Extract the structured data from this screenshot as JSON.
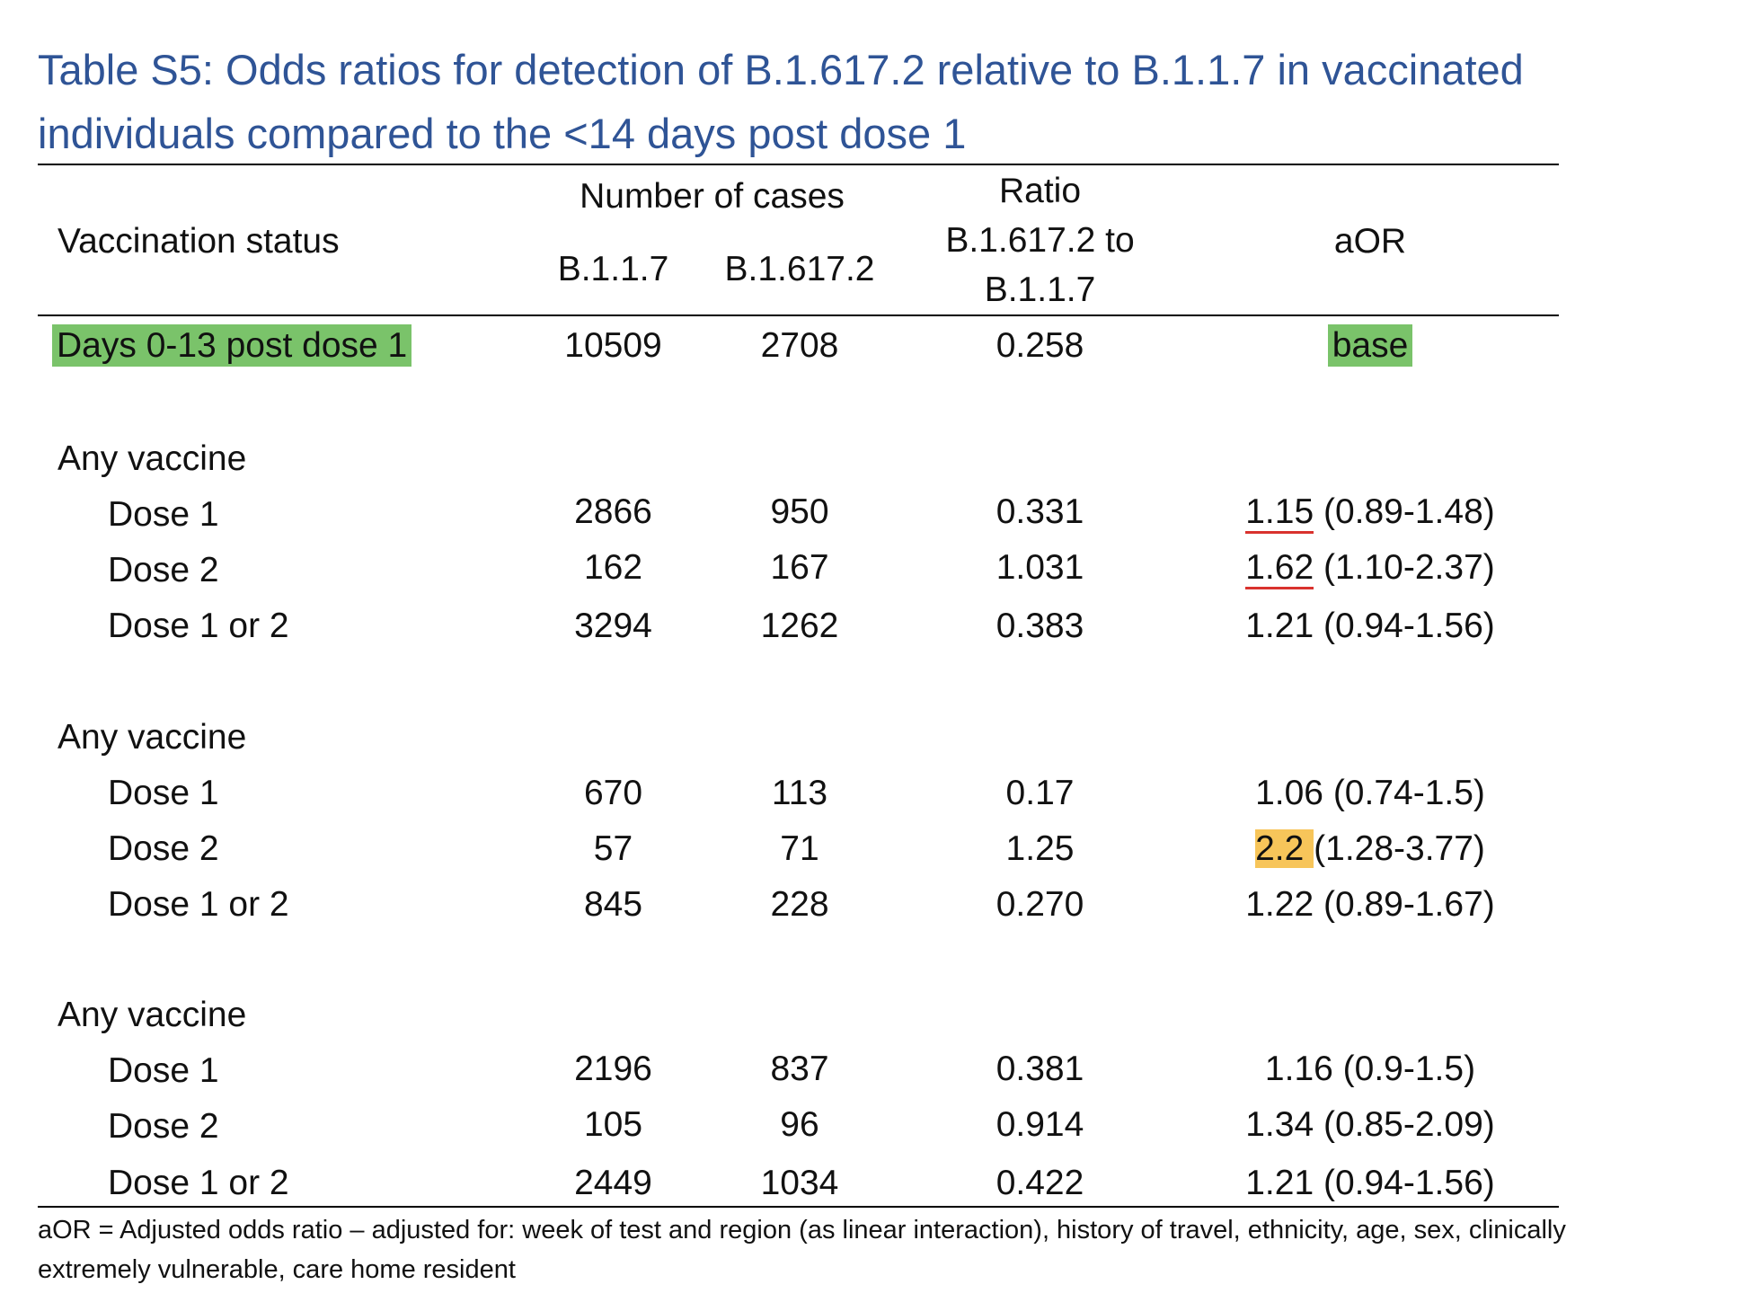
{
  "title": "Table S5: Odds ratios for detection of B.1.617.2 relative to B.1.1.7 in vaccinated individuals compared to the <14 days post dose 1",
  "header": {
    "col_status": "Vaccination status",
    "col_cases_group": "Number of cases",
    "col_b117": "B.1.1.7",
    "col_b16172": "B.1.617.2",
    "col_ratio_line1": "Ratio",
    "col_ratio_line2": "B.1.617.2 to",
    "col_ratio_line3": "B.1.1.7",
    "col_aor": "aOR"
  },
  "baseline": {
    "label": "Days 0-13 post dose 1",
    "b117": "10509",
    "b16172": "2708",
    "ratio": "0.258",
    "aor": "base"
  },
  "groups": [
    {
      "label": "Any vaccine",
      "rows": [
        {
          "label": "Dose 1",
          "b117": "2866",
          "b16172": "950",
          "ratio": "0.331",
          "aor_est": "1.15",
          "aor_ci": " (0.89-1.48)"
        },
        {
          "label": "Dose 2",
          "b117": "162",
          "b16172": "167",
          "ratio": "1.031",
          "aor_est": "1.62",
          "aor_ci": " (1.10-2.37)"
        },
        {
          "label": "Dose 1 or 2",
          "b117": "3294",
          "b16172": "1262",
          "ratio": "0.383",
          "aor_est": "1.21",
          "aor_ci": " (0.94-1.56)"
        }
      ]
    },
    {
      "label": "Any vaccine",
      "rows": [
        {
          "label": "Dose 1",
          "b117": "670",
          "b16172": "113",
          "ratio": "0.17",
          "aor_est": "1.06",
          "aor_ci": " (0.74-1.5)"
        },
        {
          "label": "Dose 2",
          "b117": "57",
          "b16172": "71",
          "ratio": "1.25",
          "aor_est": "2.2 ",
          "aor_ci": "(1.28-3.77)"
        },
        {
          "label": "Dose 1 or 2",
          "b117": "845",
          "b16172": "228",
          "ratio": "0.270",
          "aor_est": "1.22",
          "aor_ci": " (0.89-1.67)"
        }
      ]
    },
    {
      "label": "Any vaccine",
      "rows": [
        {
          "label": "Dose 1",
          "b117": "2196",
          "b16172": "837",
          "ratio": "0.381",
          "aor_est": "1.16",
          "aor_ci": " (0.9-1.5)"
        },
        {
          "label": "Dose 2",
          "b117": "105",
          "b16172": "96",
          "ratio": "0.914",
          "aor_est": "1.34",
          "aor_ci": " (0.85-2.09)"
        },
        {
          "label": "Dose 1 or 2",
          "b117": "2449",
          "b16172": "1034",
          "ratio": "0.422",
          "aor_est": "1.21",
          "aor_ci": " (0.94-1.56)"
        }
      ]
    }
  ],
  "footnote": "aOR = Adjusted odds ratio – adjusted for: week of test and region (as linear interaction), history of travel, ethnicity, age, sex, clinically extremely vulnerable, care home resident",
  "colors": {
    "title": "#2f5496",
    "highlight_green": "#7ac36a",
    "highlight_orange": "#f7c55a",
    "underline_red": "#d9322e"
  }
}
